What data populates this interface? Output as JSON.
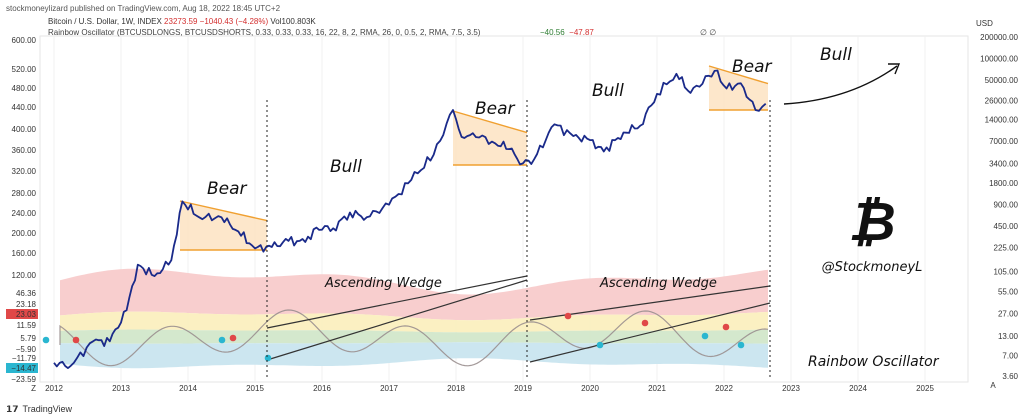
{
  "header": {
    "publisher": "stockmoneylizard published on TradingView.com, Aug 18, 2022 18:45 UTC+2",
    "symbol": "Bitcoin / U.S. Dollar, 1W, INDEX",
    "price": "23273.59",
    "change": "−1040.43 (−4.28%)",
    "volume": "Vol100.803K",
    "indicator": "Rainbow Oscillator (BTCUSDLONGS, BTCUSDSHORTS, 0.33, 0.33, 0.33, 16, 22, 8, 2, RMA, 26, 0, 0.5, 2, RMA, 7.5, 3.5)",
    "osc_value_1": "−40.56",
    "osc_value_2": "−47.87",
    "osc_value_3": "∅ ∅",
    "currency": "USD"
  },
  "footer": {
    "logo": "𝟭𝟳",
    "brand": "TradingView"
  },
  "colors": {
    "price_line": "#1a2a8a",
    "bear_fill": "#fde3c2",
    "bear_line": "#f0a030",
    "osc_red": "#f7c9c9",
    "osc_yellow": "#fbeebb",
    "osc_green": "#cfe6c8",
    "osc_blue": "#c7e3ee",
    "wedge_line": "#333333",
    "marker_cyan": "#2ab6d0",
    "marker_red": "#e04848",
    "badge_red": "#e04848",
    "badge_cyan": "#2ab6d0"
  },
  "chart_data": {
    "type": "line",
    "title": "Bitcoin / U.S. Dollar, 1W, INDEX",
    "x_ticks": [
      "2012",
      "2013",
      "2014",
      "2015",
      "2016",
      "2017",
      "2018",
      "2019",
      "2020",
      "2021",
      "2022",
      "2023",
      "2024",
      "2025"
    ],
    "left_axis_ticks": [
      "600.00",
      "520.00",
      "480.00",
      "440.00",
      "400.00",
      "360.00",
      "320.00",
      "280.00",
      "240.00",
      "200.00",
      "160.00",
      "120.00",
      "46.36",
      "23.18",
      "11.59",
      "5.79",
      "−5.90",
      "−11.79",
      "−23.59"
    ],
    "left_axis_badges": [
      "23.03",
      "−14.47"
    ],
    "right_axis_ticks": [
      "200000.00",
      "100000.00",
      "50000.00",
      "26000.00",
      "14000.00",
      "7000.00",
      "3400.00",
      "1800.00",
      "900.00",
      "450.00",
      "225.00",
      "105.00",
      "55.00",
      "27.00",
      "13.00",
      "7.00",
      "3.60"
    ],
    "log_scale": true,
    "ylim": [
      3.6,
      200000
    ],
    "series": [
      {
        "name": "Bitcoin / U.S. Dollar",
        "points": [
          [
            "2012-01-01",
            5.5
          ],
          [
            "2012-04-01",
            5.0
          ],
          [
            "2012-08-01",
            11
          ],
          [
            "2012-11-01",
            11
          ],
          [
            "2013-02-01",
            30
          ],
          [
            "2013-04-01",
            130
          ],
          [
            "2013-07-01",
            90
          ],
          [
            "2013-10-01",
            150
          ],
          [
            "2013-12-01",
            1000
          ],
          [
            "2014-03-01",
            600
          ],
          [
            "2014-07-01",
            600
          ],
          [
            "2014-10-01",
            380
          ],
          [
            "2015-01-01",
            220
          ],
          [
            "2015-04-01",
            230
          ],
          [
            "2015-07-01",
            280
          ],
          [
            "2015-10-01",
            270
          ],
          [
            "2015-12-01",
            430
          ],
          [
            "2016-03-01",
            420
          ],
          [
            "2016-06-01",
            700
          ],
          [
            "2016-09-01",
            600
          ],
          [
            "2017-01-01",
            900
          ],
          [
            "2017-05-01",
            2000
          ],
          [
            "2017-09-01",
            4500
          ],
          [
            "2017-12-15",
            19000
          ],
          [
            "2018-02-01",
            8000
          ],
          [
            "2018-04-01",
            9000
          ],
          [
            "2018-08-01",
            6500
          ],
          [
            "2018-11-01",
            5500
          ],
          [
            "2018-12-15",
            3300
          ],
          [
            "2019-03-01",
            3900
          ],
          [
            "2019-06-20",
            12000
          ],
          [
            "2019-10-01",
            8200
          ],
          [
            "2020-01-01",
            7200
          ],
          [
            "2020-03-15",
            5000
          ],
          [
            "2020-07-01",
            9200
          ],
          [
            "2020-10-01",
            11500
          ],
          [
            "2021-01-01",
            32000
          ],
          [
            "2021-04-15",
            61000
          ],
          [
            "2021-07-01",
            33000
          ],
          [
            "2021-11-10",
            67000
          ],
          [
            "2022-01-15",
            38000
          ],
          [
            "2022-04-01",
            45000
          ],
          [
            "2022-06-20",
            19000
          ],
          [
            "2022-08-15",
            23273.59
          ]
        ]
      }
    ]
  },
  "annotations": {
    "bear_label": "Bear",
    "bull_label": "Bull",
    "wedge_label": "Ascending Wedge",
    "signature": "@StockmoneyL",
    "oscillator_label": "Rainbow Oscillator",
    "btc_symbol": "₿"
  },
  "axis_scale": {
    "x_tick_symbol": "Z",
    "auto_scale_button": "A"
  }
}
